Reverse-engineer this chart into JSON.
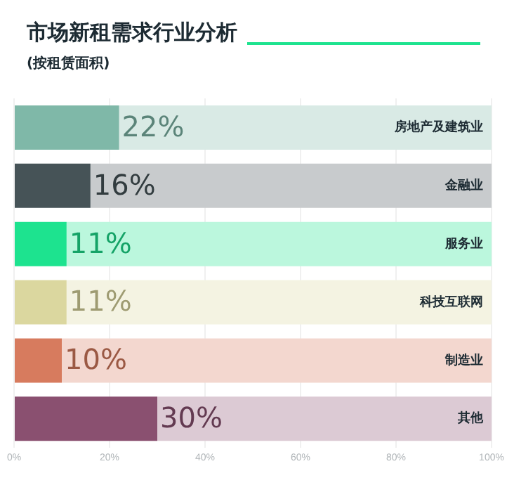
{
  "chart_data": {
    "type": "bar",
    "orientation": "horizontal",
    "stacked": true,
    "title": "市场新租需求行业分析",
    "subtitle": "(按租赁面积)",
    "categories": [
      "房地产及建筑业",
      "金融业",
      "服务业",
      "科技互联网",
      "制造业",
      "其他"
    ],
    "series": [
      {
        "values": [
          22,
          16,
          11,
          11,
          10,
          30
        ],
        "colors": [
          "#7fb8a8",
          "#465357",
          "#1de38f",
          "#dbd79f",
          "#d77b5e",
          "#8a5070"
        ],
        "value_labels": [
          "22%",
          "16%",
          "11%",
          "11%",
          "10%",
          "30%"
        ]
      },
      {
        "values": [
          78,
          84,
          89,
          89,
          90,
          70
        ],
        "colors": [
          "#d9eae5",
          "#c8cbcd",
          "#bbf7dd",
          "#f4f3e2",
          "#f3d7cf",
          "#dccad4"
        ]
      }
    ],
    "xlim": [
      0,
      100
    ],
    "xticks": [
      {
        "value": 0,
        "label": "0%"
      },
      {
        "value": 20,
        "label": "20%"
      },
      {
        "value": 40,
        "label": "40%"
      },
      {
        "value": 60,
        "label": "60%"
      },
      {
        "value": 80,
        "label": "80%"
      },
      {
        "value": 100,
        "label": "100%"
      }
    ],
    "grid": "x",
    "legend": false
  }
}
